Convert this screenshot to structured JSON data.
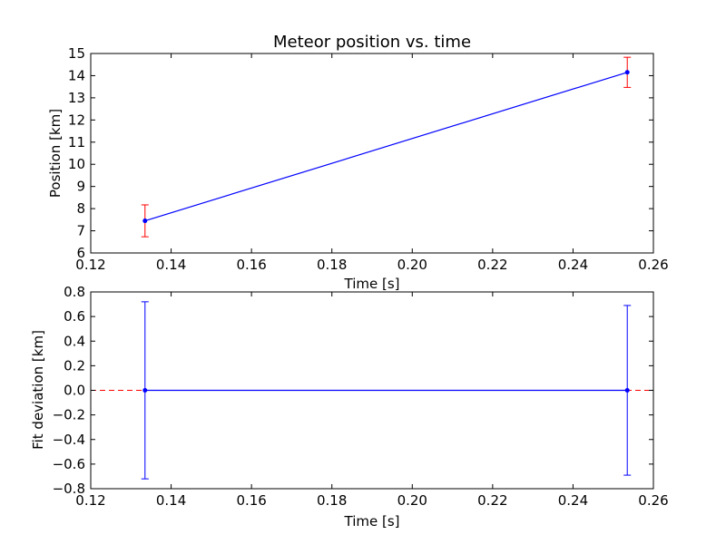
{
  "chart_data": [
    {
      "type": "line",
      "title": "Meteor position vs. time",
      "xlabel": "Time [s]",
      "ylabel": "Position [km]",
      "xlim": [
        0.12,
        0.26
      ],
      "ylim": [
        6,
        15
      ],
      "xticks": [
        "0.12",
        "0.14",
        "0.16",
        "0.18",
        "0.20",
        "0.22",
        "0.24",
        "0.26"
      ],
      "yticks": [
        "6",
        "7",
        "8",
        "9",
        "10",
        "11",
        "12",
        "13",
        "14",
        "15"
      ],
      "series": [
        {
          "x": [
            0.1335,
            0.2535
          ],
          "y": [
            7.45,
            14.15
          ],
          "yerr": [
            0.72,
            0.68
          ],
          "color": "#0000ff",
          "errorbar_color": "#ff0000"
        }
      ],
      "grid": false
    },
    {
      "type": "line",
      "title": "",
      "xlabel": "Time [s]",
      "ylabel": "Fit deviation [km]",
      "xlim": [
        0.12,
        0.26
      ],
      "ylim": [
        -0.8,
        0.8
      ],
      "xticks": [
        "0.12",
        "0.14",
        "0.16",
        "0.18",
        "0.20",
        "0.22",
        "0.24",
        "0.26"
      ],
      "yticks": [
        "−0.8",
        "−0.6",
        "−0.4",
        "−0.2",
        "0.0",
        "0.2",
        "0.4",
        "0.6",
        "0.8"
      ],
      "series": [
        {
          "x": [
            0.1335,
            0.2535
          ],
          "y": [
            0.0,
            0.0
          ],
          "yerr": [
            0.72,
            0.69
          ],
          "color": "#0000ff",
          "errorbar_color": "#0000ff"
        }
      ],
      "reference_line": {
        "y": 0.0,
        "color": "#ff0000",
        "style": "dashed"
      },
      "grid": false
    }
  ]
}
